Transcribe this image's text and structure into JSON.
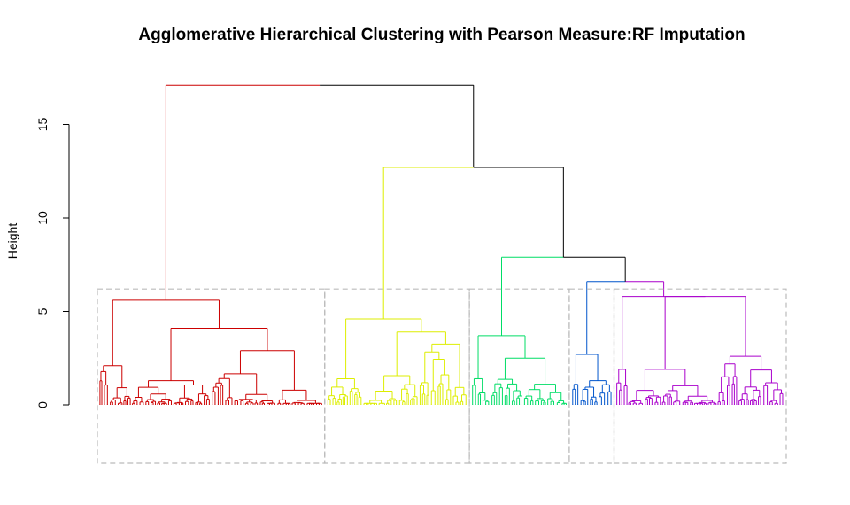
{
  "chart_data": {
    "type": "dendrogram",
    "title": "Agglomerative Hierarchical Clustering with Pearson Measure:RF Imputation",
    "ylabel": "Height",
    "ylim": [
      0,
      17.2
    ],
    "yticks": [
      "0",
      "5",
      "10",
      "15"
    ],
    "cut_height": 6.2,
    "merges": [
      {
        "cluster": "red",
        "height": 17.1
      },
      {
        "cluster": "yellow-green-blue-purple",
        "height": 12.7
      },
      {
        "cluster": "green-blue-purple",
        "height": 7.9
      },
      {
        "cluster": "blue-purple",
        "height": 6.6
      },
      {
        "cluster": "red",
        "height": 5.6
      },
      {
        "cluster": "yellow",
        "height": 4.6
      },
      {
        "cluster": "green",
        "height": 3.7
      },
      {
        "cluster": "purple",
        "height": 5.8
      }
    ],
    "clusters": [
      {
        "color": "#cc0000",
        "leaf_share": 0.33
      },
      {
        "color": "#ddee00",
        "leaf_share": 0.21
      },
      {
        "color": "#00dd66",
        "leaf_share": 0.145
      },
      {
        "color": "#0055cc",
        "leaf_share": 0.065
      },
      {
        "color": "#aa00cc",
        "leaf_share": 0.25
      }
    ],
    "grid": false
  }
}
